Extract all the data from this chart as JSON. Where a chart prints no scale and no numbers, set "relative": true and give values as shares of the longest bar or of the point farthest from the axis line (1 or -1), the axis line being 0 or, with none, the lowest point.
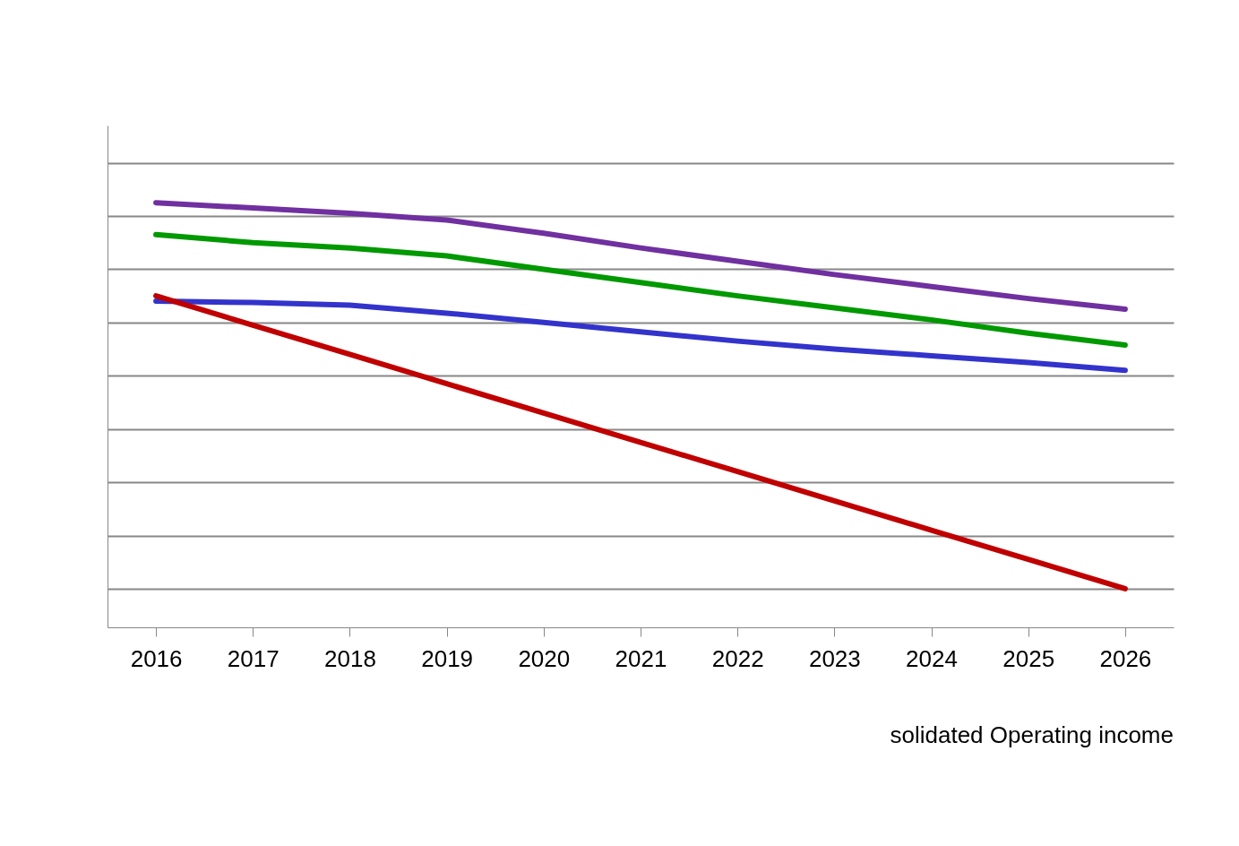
{
  "chart_data": {
    "type": "line",
    "relative": true,
    "grid": "y",
    "legend": false,
    "categories": [
      "2016",
      "2017",
      "2018",
      "2019",
      "2020",
      "2021",
      "2022",
      "2023",
      "2024",
      "2025",
      "2026"
    ],
    "series": [
      {
        "color": "#7030a0",
        "values": [
          0.45,
          0.43,
          0.41,
          0.385,
          0.335,
          0.28,
          0.23,
          0.18,
          0.135,
          0.09,
          0.05
        ]
      },
      {
        "color": "#009900",
        "values": [
          0.33,
          0.3,
          0.28,
          0.25,
          0.2,
          0.15,
          0.1,
          0.055,
          0.01,
          -0.04,
          -0.085
        ]
      },
      {
        "color": "#3333cc",
        "values": [
          0.08,
          0.075,
          0.065,
          0.035,
          0,
          -0.035,
          -0.07,
          -0.1,
          -0.125,
          -0.15,
          -0.18
        ]
      },
      {
        "color": "#c00000",
        "values": [
          0.1,
          -0.01,
          -0.12,
          -0.23,
          -0.34,
          -0.45,
          -0.56,
          -0.67,
          -0.78,
          -0.89,
          -1
        ]
      }
    ],
    "annotations": [
      "solidated Operating income"
    ]
  }
}
